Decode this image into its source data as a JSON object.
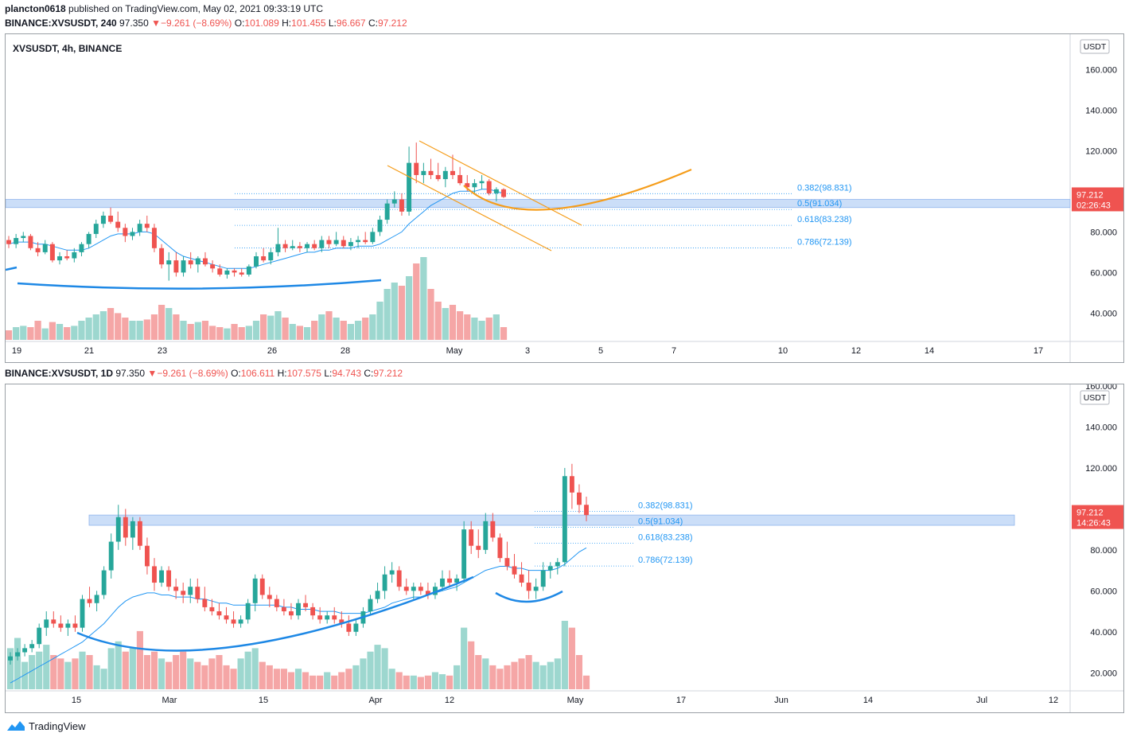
{
  "header": {
    "user": "plancton0618",
    "published_text": "published on TradingView.com, May 02, 2021 09:33:19 UTC"
  },
  "top_chart": {
    "symbol_line": "BINANCE:XVSUSDT, 240",
    "price": "97.350",
    "change": "−9.261 (−8.69%)",
    "o_label": "O:",
    "o": "101.089",
    "h_label": "H:",
    "h": "101.455",
    "l_label": "L:",
    "l": "96.667",
    "c_label": "C:",
    "c": "97.212",
    "pane_title": "XVSUSDT, 4h, BINANCE",
    "currency": "USDT",
    "last_price": "97.212",
    "countdown": "02:26:43"
  },
  "bottom_chart": {
    "symbol_line": "BINANCE:XVSUSDT, 1D",
    "price": "97.350",
    "change": "−9.261 (−8.69%)",
    "o_label": "O:",
    "o": "106.611",
    "h_label": "H:",
    "h": "107.575",
    "l_label": "L:",
    "l": "94.743",
    "c_label": "C:",
    "c": "97.212",
    "currency": "USDT",
    "last_price": "97.212",
    "countdown": "14:26:43"
  },
  "footer": {
    "brand": "TradingView"
  },
  "colors": {
    "up": "#26a69a",
    "down": "#ef5350",
    "ma": "#2196f3",
    "curve": "#1e88e5",
    "orange": "#f59d1b",
    "zone": "#b9d3f5",
    "fib": "#2196f3"
  },
  "chart_data": [
    {
      "type": "candlestick",
      "title": "XVSUSDT, 4h, BINANCE",
      "ylim": [
        35,
        165
      ],
      "y_ticks": [
        "160.000",
        "140.000",
        "120.000",
        "100.000",
        "80.000",
        "60.000",
        "40.000"
      ],
      "x_ticks": [
        "19",
        "21",
        "23",
        "26",
        "28",
        "May",
        "3",
        "5",
        "7",
        "10",
        "12",
        "14",
        "17"
      ],
      "fib_levels": [
        {
          "label": "0.382(98.831)",
          "value": 98.831
        },
        {
          "label": "0.5(91.034)",
          "value": 91.034
        },
        {
          "label": "0.618(83.238)",
          "value": 83.238
        },
        {
          "label": "0.786(72.139)",
          "value": 72.139
        }
      ],
      "zone": [
        92,
        96
      ],
      "ohlc": [
        [
          76,
          78,
          72,
          74
        ],
        [
          74,
          79,
          72,
          77
        ],
        [
          77,
          80,
          75,
          78
        ],
        [
          78,
          79,
          71,
          72
        ],
        [
          72,
          75,
          68,
          70
        ],
        [
          70,
          76,
          69,
          74
        ],
        [
          74,
          75,
          65,
          66
        ],
        [
          66,
          70,
          64,
          68
        ],
        [
          68,
          71,
          66,
          67
        ],
        [
          67,
          72,
          65,
          70
        ],
        [
          70,
          75,
          68,
          74
        ],
        [
          74,
          80,
          72,
          79
        ],
        [
          79,
          86,
          77,
          84
        ],
        [
          84,
          90,
          82,
          88
        ],
        [
          88,
          92,
          84,
          85
        ],
        [
          85,
          90,
          80,
          82
        ],
        [
          82,
          84,
          75,
          78
        ],
        [
          78,
          82,
          76,
          80
        ],
        [
          80,
          86,
          78,
          84
        ],
        [
          84,
          88,
          80,
          82
        ],
        [
          82,
          84,
          70,
          72
        ],
        [
          72,
          74,
          62,
          64
        ],
        [
          64,
          70,
          56,
          66
        ],
        [
          66,
          70,
          58,
          60
        ],
        [
          60,
          68,
          58,
          66
        ],
        [
          66,
          70,
          62,
          64
        ],
        [
          64,
          68,
          60,
          67
        ],
        [
          67,
          70,
          63,
          64
        ],
        [
          64,
          66,
          60,
          62
        ],
        [
          62,
          64,
          58,
          59
        ],
        [
          59,
          62,
          57,
          61
        ],
        [
          61,
          62,
          58,
          60
        ],
        [
          60,
          62,
          58,
          59
        ],
        [
          59,
          64,
          58,
          63
        ],
        [
          63,
          70,
          62,
          68
        ],
        [
          68,
          72,
          65,
          66
        ],
        [
          66,
          72,
          64,
          70
        ],
        [
          70,
          82,
          68,
          74
        ],
        [
          74,
          76,
          70,
          72
        ],
        [
          72,
          76,
          71,
          73
        ],
        [
          73,
          75,
          70,
          72
        ],
        [
          72,
          75,
          70,
          74
        ],
        [
          74,
          76,
          71,
          72
        ],
        [
          72,
          78,
          70,
          76
        ],
        [
          76,
          78,
          72,
          74
        ],
        [
          74,
          80,
          73,
          76
        ],
        [
          76,
          78,
          72,
          73
        ],
        [
          73,
          77,
          71,
          75
        ],
        [
          75,
          78,
          72,
          76
        ],
        [
          76,
          80,
          74,
          75
        ],
        [
          75,
          82,
          74,
          80
        ],
        [
          80,
          88,
          78,
          86
        ],
        [
          86,
          96,
          84,
          94
        ],
        [
          94,
          100,
          92,
          96
        ],
        [
          96,
          99,
          88,
          90
        ],
        [
          90,
          122,
          88,
          114
        ],
        [
          114,
          124,
          104,
          108
        ],
        [
          108,
          114,
          104,
          110
        ],
        [
          110,
          116,
          106,
          108
        ],
        [
          108,
          114,
          105,
          106
        ],
        [
          106,
          112,
          102,
          110
        ],
        [
          110,
          118,
          106,
          108
        ],
        [
          108,
          112,
          103,
          104
        ],
        [
          104,
          108,
          100,
          102
        ],
        [
          102,
          106,
          99,
          104
        ],
        [
          104,
          108,
          101,
          105
        ],
        [
          105,
          106,
          98,
          99
        ],
        [
          99,
          102,
          95,
          101
        ],
        [
          101,
          101.5,
          96.7,
          97.2
        ]
      ],
      "ma": [
        74,
        75,
        75,
        75,
        74,
        74,
        73,
        72,
        71,
        71,
        71,
        72,
        74,
        76,
        78,
        79,
        79,
        79,
        80,
        80,
        79,
        76,
        73,
        70,
        68,
        67,
        66,
        65,
        64,
        63,
        62,
        62,
        62,
        62,
        63,
        64,
        65,
        66,
        67,
        68,
        69,
        70,
        70,
        71,
        71,
        72,
        72,
        72,
        73,
        73,
        73,
        74,
        76,
        78,
        80,
        84,
        87,
        90,
        93,
        95,
        97,
        99,
        100,
        100,
        100,
        101,
        101,
        100,
        99
      ],
      "volume_rel": [
        0.15,
        0.2,
        0.22,
        0.2,
        0.3,
        0.18,
        0.28,
        0.25,
        0.2,
        0.22,
        0.3,
        0.35,
        0.4,
        0.45,
        0.5,
        0.42,
        0.35,
        0.3,
        0.3,
        0.32,
        0.4,
        0.55,
        0.5,
        0.4,
        0.3,
        0.25,
        0.28,
        0.3,
        0.22,
        0.2,
        0.18,
        0.25,
        0.2,
        0.22,
        0.3,
        0.4,
        0.38,
        0.45,
        0.35,
        0.25,
        0.22,
        0.2,
        0.3,
        0.4,
        0.45,
        0.35,
        0.3,
        0.25,
        0.3,
        0.35,
        0.4,
        0.6,
        0.8,
        0.9,
        0.85,
        1.0,
        1.2,
        1.3,
        0.8,
        0.6,
        0.5,
        0.55,
        0.45,
        0.4,
        0.35,
        0.3,
        0.35,
        0.4,
        0.2
      ]
    },
    {
      "type": "candlestick",
      "title": "BINANCE:XVSUSDT, 1D",
      "ylim": [
        10,
        160
      ],
      "y_ticks": [
        "160.000",
        "140.000",
        "120.000",
        "100.000",
        "80.000",
        "60.000",
        "40.000",
        "20.000"
      ],
      "x_ticks": [
        "15",
        "Mar",
        "15",
        "Apr",
        "12",
        "May",
        "17",
        "Jun",
        "14",
        "Jul",
        "12"
      ],
      "fib_levels": [
        {
          "label": "0.382(98.831)",
          "value": 98.831
        },
        {
          "label": "0.5(91.034)",
          "value": 91.034
        },
        {
          "label": "0.618(83.238)",
          "value": 83.238
        },
        {
          "label": "0.786(72.139)",
          "value": 72.139
        }
      ],
      "zone": [
        92,
        97
      ],
      "ohlc": [
        [
          26,
          30,
          24,
          28
        ],
        [
          28,
          32,
          26,
          30
        ],
        [
          30,
          34,
          28,
          32
        ],
        [
          32,
          36,
          30,
          34
        ],
        [
          34,
          44,
          32,
          42
        ],
        [
          42,
          50,
          38,
          46
        ],
        [
          46,
          50,
          42,
          44
        ],
        [
          44,
          48,
          40,
          42
        ],
        [
          42,
          46,
          38,
          44
        ],
        [
          44,
          48,
          40,
          42
        ],
        [
          42,
          58,
          40,
          56
        ],
        [
          56,
          62,
          52,
          54
        ],
        [
          54,
          60,
          50,
          58
        ],
        [
          58,
          72,
          56,
          70
        ],
        [
          70,
          88,
          66,
          84
        ],
        [
          84,
          102,
          80,
          96
        ],
        [
          96,
          100,
          82,
          86
        ],
        [
          86,
          96,
          80,
          94
        ],
        [
          94,
          96,
          80,
          82
        ],
        [
          82,
          86,
          68,
          72
        ],
        [
          72,
          76,
          60,
          64
        ],
        [
          64,
          72,
          62,
          70
        ],
        [
          70,
          72,
          60,
          62
        ],
        [
          62,
          66,
          56,
          60
        ],
        [
          60,
          64,
          54,
          58
        ],
        [
          58,
          66,
          54,
          62
        ],
        [
          62,
          66,
          54,
          56
        ],
        [
          56,
          62,
          50,
          52
        ],
        [
          52,
          56,
          48,
          50
        ],
        [
          50,
          54,
          46,
          48
        ],
        [
          48,
          52,
          44,
          46
        ],
        [
          46,
          50,
          42,
          44
        ],
        [
          44,
          48,
          42,
          46
        ],
        [
          46,
          56,
          44,
          54
        ],
        [
          54,
          68,
          50,
          66
        ],
        [
          66,
          68,
          56,
          58
        ],
        [
          58,
          62,
          52,
          56
        ],
        [
          56,
          58,
          50,
          52
        ],
        [
          52,
          56,
          48,
          50
        ],
        [
          50,
          54,
          46,
          48
        ],
        [
          48,
          56,
          46,
          54
        ],
        [
          54,
          58,
          50,
          52
        ],
        [
          52,
          54,
          46,
          48
        ],
        [
          48,
          52,
          44,
          46
        ],
        [
          46,
          50,
          44,
          48
        ],
        [
          48,
          52,
          44,
          46
        ],
        [
          46,
          50,
          42,
          44
        ],
        [
          44,
          48,
          38,
          40
        ],
        [
          40,
          46,
          38,
          44
        ],
        [
          44,
          52,
          42,
          50
        ],
        [
          50,
          58,
          48,
          56
        ],
        [
          56,
          64,
          54,
          60
        ],
        [
          60,
          72,
          56,
          68
        ],
        [
          68,
          74,
          64,
          70
        ],
        [
          70,
          72,
          60,
          62
        ],
        [
          62,
          66,
          58,
          60
        ],
        [
          60,
          64,
          56,
          62
        ],
        [
          62,
          64,
          58,
          60
        ],
        [
          60,
          64,
          56,
          58
        ],
        [
          58,
          64,
          56,
          62
        ],
        [
          62,
          70,
          60,
          66
        ],
        [
          66,
          70,
          62,
          64
        ],
        [
          64,
          68,
          60,
          66
        ],
        [
          66,
          94,
          64,
          90
        ],
        [
          90,
          94,
          78,
          82
        ],
        [
          82,
          90,
          76,
          80
        ],
        [
          80,
          98,
          78,
          94
        ],
        [
          94,
          98,
          84,
          86
        ],
        [
          86,
          88,
          74,
          76
        ],
        [
          76,
          84,
          70,
          72
        ],
        [
          72,
          78,
          66,
          68
        ],
        [
          68,
          74,
          62,
          64
        ],
        [
          64,
          70,
          56,
          60
        ],
        [
          60,
          66,
          56,
          62
        ],
        [
          62,
          74,
          60,
          70
        ],
        [
          70,
          74,
          66,
          72
        ],
        [
          72,
          76,
          68,
          74
        ],
        [
          74,
          120,
          72,
          116
        ],
        [
          116,
          122,
          100,
          108
        ],
        [
          108,
          112,
          98,
          102
        ],
        [
          102,
          106,
          94,
          97
        ]
      ],
      "ma": [
        15,
        17,
        19,
        21,
        23,
        25,
        27,
        29,
        31,
        33,
        35,
        38,
        41,
        44,
        48,
        52,
        55,
        57,
        58,
        59,
        59,
        58,
        58,
        57,
        57,
        57,
        56,
        56,
        55,
        54,
        54,
        53,
        53,
        53,
        53,
        53,
        53,
        53,
        52,
        52,
        51,
        51,
        51,
        50,
        50,
        50,
        49,
        49,
        49,
        49,
        50,
        51,
        52,
        54,
        55,
        56,
        57,
        57,
        58,
        59,
        60,
        61,
        62,
        64,
        66,
        68,
        70,
        71,
        72,
        72,
        71,
        71,
        70,
        70,
        70,
        70,
        71,
        73,
        76,
        79,
        81
      ],
      "volume_rel": [
        0.6,
        0.75,
        0.4,
        0.5,
        0.55,
        0.65,
        0.5,
        0.45,
        0.4,
        0.45,
        0.55,
        0.5,
        0.35,
        0.3,
        0.6,
        0.7,
        0.55,
        0.6,
        0.85,
        0.5,
        0.55,
        0.45,
        0.4,
        0.5,
        0.55,
        0.45,
        0.4,
        0.35,
        0.45,
        0.5,
        0.35,
        0.3,
        0.45,
        0.55,
        0.6,
        0.4,
        0.35,
        0.3,
        0.3,
        0.25,
        0.3,
        0.25,
        0.2,
        0.2,
        0.25,
        0.2,
        0.25,
        0.3,
        0.35,
        0.45,
        0.55,
        0.65,
        0.6,
        0.3,
        0.25,
        0.2,
        0.2,
        0.18,
        0.2,
        0.25,
        0.22,
        0.2,
        0.35,
        0.9,
        0.7,
        0.5,
        0.45,
        0.35,
        0.3,
        0.35,
        0.4,
        0.45,
        0.5,
        0.4,
        0.35,
        0.4,
        0.45,
        1.0,
        0.9,
        0.5,
        0.2
      ]
    }
  ]
}
